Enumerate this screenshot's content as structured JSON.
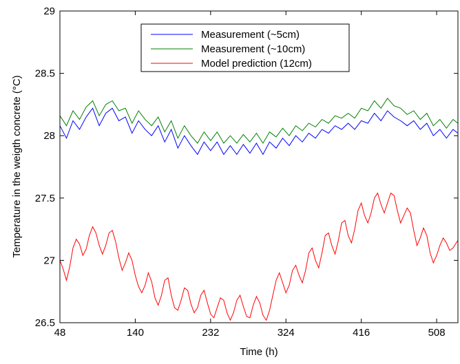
{
  "chart_data": {
    "type": "line",
    "title": "",
    "xlabel": "Time (h)",
    "ylabel": "Temperature in the weigth concrete (°C)",
    "xlim": [
      48,
      534
    ],
    "ylim": [
      26.5,
      29
    ],
    "xticks": [
      48,
      140,
      232,
      324,
      416,
      508
    ],
    "xtick_labels": [
      "48",
      "140",
      "232",
      "324",
      "416",
      "508"
    ],
    "yticks": [
      26.5,
      27,
      27.5,
      28,
      28.5,
      29
    ],
    "ytick_labels": [
      "26.5",
      "27",
      "27.5",
      "28",
      "28.5",
      "29"
    ],
    "grid": false,
    "legend_position": "top-center",
    "series": [
      {
        "name": "Measurement  (~5cm)",
        "color": "#0000ff",
        "x": [
          48,
          56,
          64,
          72,
          80,
          88,
          96,
          104,
          112,
          120,
          128,
          136,
          144,
          152,
          160,
          168,
          176,
          184,
          192,
          200,
          208,
          216,
          224,
          232,
          240,
          248,
          256,
          264,
          272,
          280,
          288,
          296,
          304,
          312,
          320,
          328,
          336,
          344,
          352,
          360,
          368,
          376,
          384,
          392,
          400,
          408,
          416,
          424,
          432,
          440,
          448,
          456,
          464,
          472,
          480,
          488,
          496,
          504,
          512,
          520,
          528,
          534
        ],
        "y": [
          28.08,
          27.98,
          28.12,
          28.05,
          28.15,
          28.22,
          28.08,
          28.18,
          28.22,
          28.12,
          28.15,
          28.02,
          28.12,
          28.05,
          28.0,
          28.08,
          27.95,
          28.05,
          27.9,
          28.0,
          27.92,
          27.85,
          27.95,
          27.88,
          27.95,
          27.85,
          27.92,
          27.85,
          27.93,
          27.86,
          27.94,
          27.85,
          27.95,
          27.9,
          27.98,
          27.92,
          28.0,
          27.95,
          28.02,
          27.98,
          28.05,
          28.02,
          28.08,
          28.05,
          28.1,
          28.05,
          28.12,
          28.1,
          28.18,
          28.12,
          28.2,
          28.15,
          28.12,
          28.08,
          28.12,
          28.05,
          28.1,
          28.0,
          28.05,
          27.98,
          28.05,
          28.02
        ]
      },
      {
        "name": "Measurement  (~10cm)",
        "color": "#008000",
        "x": [
          48,
          56,
          64,
          72,
          80,
          88,
          96,
          104,
          112,
          120,
          128,
          136,
          144,
          152,
          160,
          168,
          176,
          184,
          192,
          200,
          208,
          216,
          224,
          232,
          240,
          248,
          256,
          264,
          272,
          280,
          288,
          296,
          304,
          312,
          320,
          328,
          336,
          344,
          352,
          360,
          368,
          376,
          384,
          392,
          400,
          408,
          416,
          424,
          432,
          440,
          448,
          456,
          464,
          472,
          480,
          488,
          496,
          504,
          512,
          520,
          528,
          534
        ],
        "y": [
          28.16,
          28.08,
          28.2,
          28.13,
          28.23,
          28.28,
          28.16,
          28.25,
          28.28,
          28.2,
          28.22,
          28.1,
          28.2,
          28.13,
          28.08,
          28.15,
          28.03,
          28.12,
          27.98,
          28.08,
          28.0,
          27.94,
          28.03,
          27.96,
          28.03,
          27.94,
          28.0,
          27.94,
          28.01,
          27.95,
          28.02,
          27.94,
          28.03,
          27.99,
          28.06,
          28.0,
          28.08,
          28.04,
          28.1,
          28.07,
          28.13,
          28.1,
          28.16,
          28.14,
          28.18,
          28.14,
          28.22,
          28.2,
          28.28,
          28.22,
          28.3,
          28.24,
          28.22,
          28.17,
          28.2,
          28.13,
          28.18,
          28.08,
          28.13,
          28.06,
          28.13,
          28.1
        ]
      },
      {
        "name": "Model prediction (12cm)",
        "color": "#ff0000",
        "x": [
          48,
          52,
          56,
          60,
          64,
          68,
          72,
          76,
          80,
          84,
          88,
          92,
          96,
          100,
          104,
          108,
          112,
          116,
          120,
          124,
          128,
          132,
          136,
          140,
          144,
          148,
          152,
          156,
          160,
          164,
          168,
          172,
          176,
          180,
          184,
          188,
          192,
          196,
          200,
          204,
          208,
          212,
          216,
          220,
          224,
          228,
          232,
          236,
          240,
          244,
          248,
          252,
          256,
          260,
          264,
          268,
          272,
          276,
          280,
          284,
          288,
          292,
          296,
          300,
          304,
          308,
          312,
          316,
          320,
          324,
          328,
          332,
          336,
          340,
          344,
          348,
          352,
          356,
          360,
          364,
          368,
          372,
          376,
          380,
          384,
          388,
          392,
          396,
          400,
          404,
          408,
          412,
          416,
          420,
          424,
          428,
          432,
          436,
          440,
          444,
          448,
          452,
          456,
          460,
          464,
          468,
          472,
          476,
          480,
          484,
          488,
          492,
          496,
          500,
          504,
          508,
          512,
          516,
          520,
          524,
          528,
          532,
          534
        ],
        "y": [
          27.0,
          26.93,
          26.84,
          26.95,
          27.1,
          27.17,
          27.13,
          27.04,
          27.09,
          27.2,
          27.27,
          27.22,
          27.12,
          27.05,
          27.12,
          27.22,
          27.24,
          27.15,
          27.02,
          26.92,
          26.98,
          27.06,
          27.0,
          26.88,
          26.79,
          26.74,
          26.8,
          26.9,
          26.83,
          26.7,
          26.64,
          26.72,
          26.84,
          26.86,
          26.72,
          26.62,
          26.6,
          26.68,
          26.78,
          26.76,
          26.65,
          26.58,
          26.62,
          26.72,
          26.76,
          26.66,
          26.57,
          26.54,
          26.62,
          26.7,
          26.68,
          26.58,
          26.52,
          26.58,
          26.68,
          26.72,
          26.63,
          26.55,
          26.54,
          26.64,
          26.71,
          26.66,
          26.56,
          26.52,
          26.6,
          26.72,
          26.84,
          26.9,
          26.82,
          26.74,
          26.8,
          26.92,
          26.96,
          26.88,
          26.82,
          26.92,
          27.06,
          27.1,
          27.0,
          26.94,
          27.06,
          27.2,
          27.22,
          27.12,
          27.05,
          27.16,
          27.3,
          27.32,
          27.2,
          27.14,
          27.25,
          27.4,
          27.46,
          27.36,
          27.3,
          27.38,
          27.5,
          27.54,
          27.45,
          27.38,
          27.46,
          27.54,
          27.52,
          27.4,
          27.3,
          27.36,
          27.42,
          27.38,
          27.24,
          27.12,
          27.18,
          27.26,
          27.2,
          27.06,
          26.98,
          27.04,
          27.12,
          27.18,
          27.14,
          27.08,
          27.1,
          27.14,
          27.16
        ]
      }
    ]
  }
}
